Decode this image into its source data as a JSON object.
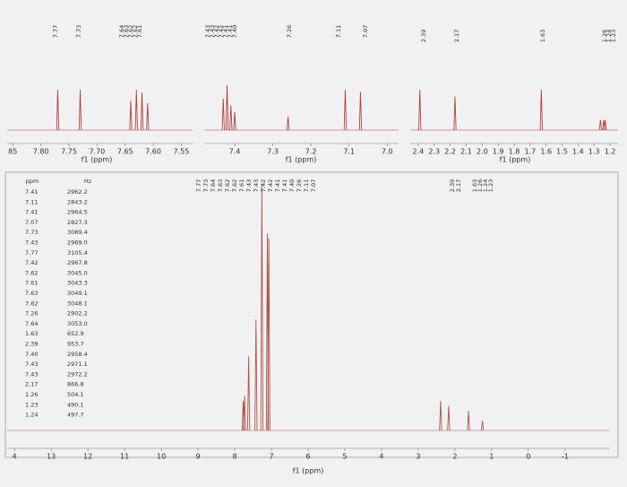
{
  "chart_data": [
    {
      "type": "line",
      "xlabel": "f1 (ppm)",
      "xlim": [
        7.86,
        7.53
      ],
      "xticks": [
        {
          "value": 7.85,
          "label": "85"
        },
        {
          "value": 7.8,
          "label": "7.80"
        },
        7.75,
        {
          "value": 7.7,
          "label": "7.70"
        },
        7.65,
        {
          "value": 7.6,
          "label": "7.60"
        },
        7.55
      ],
      "x": [
        7.77,
        7.73,
        7.64,
        7.63,
        7.62,
        7.61
      ],
      "values": [
        30,
        30,
        22,
        30,
        28,
        20
      ],
      "color": "#b0413e",
      "peak_labels": [
        "7.77",
        "7.73",
        "7.64",
        "7.63",
        "7.62",
        "7.62",
        "7.61"
      ]
    },
    {
      "type": "line",
      "xlabel": "f1 (ppm)",
      "xlim": [
        7.48,
        6.97
      ],
      "xticks": [
        7.4,
        7.3,
        7.2,
        7.1,
        {
          "value": 7,
          "label": "7.0"
        }
      ],
      "x": [
        7.43,
        7.42,
        7.41,
        7.4,
        7.26,
        7.11,
        7.07
      ],
      "values": [
        70,
        100,
        55,
        40,
        30,
        90,
        85
      ],
      "color": "#b0413e",
      "peak_labels": [
        "7.43",
        "7.43",
        "7.42",
        "7.42",
        "7.41",
        "7.41",
        "7.40",
        "7.26",
        "7.11",
        "7.07"
      ]
    },
    {
      "type": "line",
      "xlabel": "f1 (ppm)",
      "xlim": [
        2.45,
        1.15
      ],
      "xticks": [
        2.4,
        2.3,
        2.2,
        2.1,
        {
          "value": 2,
          "label": "2.0"
        },
        1.9,
        1.8,
        1.7,
        1.6,
        1.5,
        1.4,
        1.3,
        1.2
      ],
      "x": [
        2.39,
        2.17,
        1.63,
        1.26,
        1.24,
        1.23
      ],
      "values": [
        12,
        10,
        12,
        3,
        3,
        3
      ],
      "color": "#b0413e",
      "peak_labels": [
        "2.39",
        "2.17",
        "1.63",
        "1.26",
        "1.24",
        "1.23"
      ]
    },
    {
      "type": "line",
      "xlabel": "f1 (ppm)",
      "xlim": [
        14.2,
        -2.2
      ],
      "xticks": [
        {
          "value": 14,
          "label": "4"
        },
        13,
        12,
        11,
        10,
        9,
        8,
        7,
        6,
        5,
        4,
        3,
        2,
        1,
        0,
        -1
      ],
      "x": [
        7.77,
        7.73,
        7.62,
        7.42,
        7.26,
        7.11,
        7.07,
        2.39,
        2.17,
        1.63,
        1.25
      ],
      "values": [
        12,
        14,
        30,
        45,
        100,
        80,
        78,
        12,
        10,
        8,
        4
      ],
      "color": "#a8554a",
      "peak_labels": [
        "7.77",
        "7.73",
        "7.64",
        "7.63",
        "7.62",
        "7.62",
        "7.61",
        "7.43",
        "7.43",
        "7.42",
        "7.42",
        "7.41",
        "7.41",
        "7.40",
        "7.26",
        "7.11",
        "7.07",
        "2.39",
        "2.17",
        "1.63",
        "1.26",
        "1.24",
        "1.23"
      ],
      "table": {
        "columns": [
          "ppm",
          "Hz"
        ],
        "rows": [
          [
            "7.41",
            "2962.2"
          ],
          [
            "7.11",
            "2843.2"
          ],
          [
            "7.41",
            "2964.5"
          ],
          [
            "7.07",
            "2827.3"
          ],
          [
            "7.73",
            "3089.4"
          ],
          [
            "7.43",
            "2969.0"
          ],
          [
            "7.77",
            "3105.4"
          ],
          [
            "7.42",
            "2967.8"
          ],
          [
            "7.62",
            "3045.0"
          ],
          [
            "7.61",
            "3043.3"
          ],
          [
            "7.63",
            "3049.1"
          ],
          [
            "7.62",
            "3048.1"
          ],
          [
            "7.26",
            "2902.2"
          ],
          [
            "7.64",
            "3053.0"
          ],
          [
            "1.63",
            "652.9"
          ],
          [
            "2.39",
            "953.7"
          ],
          [
            "7.40",
            "2958.4"
          ],
          [
            "7.43",
            "2971.1"
          ],
          [
            "7.43",
            "2972.2"
          ],
          [
            "2.17",
            "866.8"
          ],
          [
            "1.26",
            "504.1"
          ],
          [
            "1.23",
            "490.1"
          ],
          [
            "1.24",
            "497.7"
          ]
        ]
      }
    }
  ]
}
